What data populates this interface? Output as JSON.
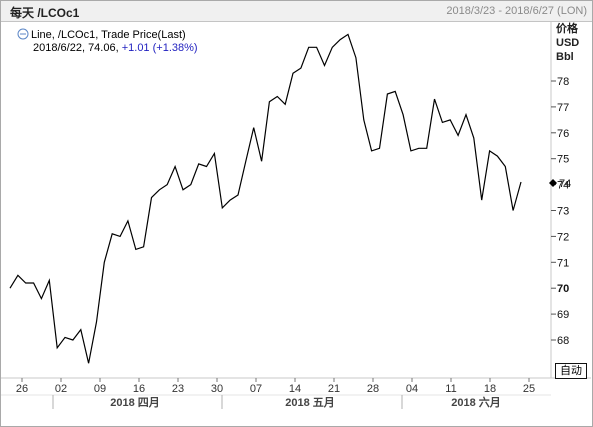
{
  "header": {
    "title": "每天 /LCOc1",
    "date_range": "2018/3/23 - 2018/6/27 (LON)"
  },
  "legend": {
    "series_label": "Line, /LCOc1, Trade Price(Last)",
    "date": "2018/6/22",
    "value": "74.06",
    "change": "+1.01",
    "change_pct": "(+1.38%)"
  },
  "units": {
    "line1": "价格",
    "line2": "USD",
    "line3": "Bbl"
  },
  "auto_button": "自动",
  "colors": {
    "line": "#000000",
    "change": "#1f1fbf",
    "grid_sep": "#b0b0b0"
  },
  "chart_data": {
    "type": "line",
    "title": "",
    "xlabel": "",
    "ylabel": "",
    "ylim": [
      66.9,
      80.0
    ],
    "yticks": [
      68,
      69,
      70,
      71,
      72,
      73,
      74,
      75,
      76,
      77,
      78
    ],
    "ytick_labels": [
      "68",
      "69",
      "70",
      "71",
      "72",
      "73",
      "74",
      "75",
      "76",
      "77",
      "78"
    ],
    "bold_ytick": 70,
    "xtick_labels": [
      "26",
      "02",
      "09",
      "16",
      "23",
      "30",
      "07",
      "14",
      "21",
      "28",
      "04",
      "11",
      "18",
      "25"
    ],
    "months": [
      "2018 四月",
      "2018 五月",
      "2018 六月"
    ],
    "last_value_marker": 74.06,
    "series": [
      {
        "values": [
          70.0,
          70.5,
          70.2,
          70.2,
          69.6,
          70.3,
          67.7,
          68.1,
          68.0,
          68.4,
          67.1,
          68.7,
          71.0,
          72.1,
          72.0,
          72.6,
          71.5,
          71.6,
          73.5,
          73.8,
          74.0,
          74.7,
          73.8,
          74.0,
          74.8,
          74.7,
          75.2,
          73.1,
          73.4,
          73.6,
          74.9,
          76.2,
          74.9,
          77.2,
          77.4,
          77.1,
          78.3,
          78.5,
          79.3,
          79.3,
          78.6,
          79.3,
          79.6,
          79.8,
          78.9,
          76.5,
          75.3,
          75.4,
          77.5,
          77.6,
          76.7,
          75.3,
          75.4,
          75.4,
          77.3,
          76.4,
          76.5,
          75.9,
          76.7,
          75.8,
          73.4,
          75.3,
          75.1,
          74.7,
          73.0,
          74.1
        ]
      }
    ]
  }
}
